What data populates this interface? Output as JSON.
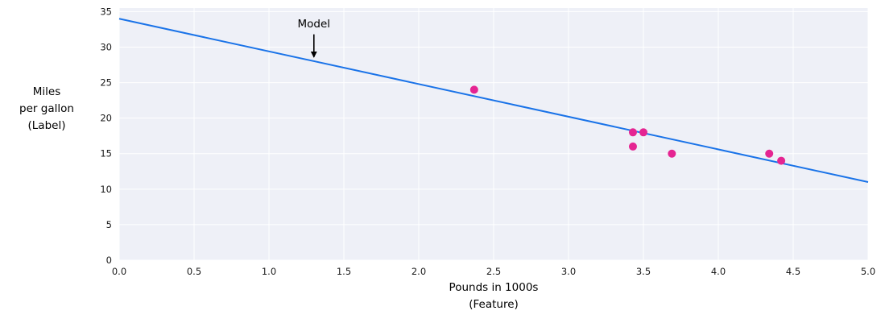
{
  "chart_data": {
    "type": "scatter",
    "title": "",
    "xlabel_lines": [
      "Pounds in 1000s",
      "(Feature)"
    ],
    "ylabel_lines": [
      "Miles",
      "per gallon",
      "(Label)"
    ],
    "xlim": [
      0,
      5
    ],
    "ylim": [
      0,
      35.5
    ],
    "xticks": [
      0,
      0.5,
      1.0,
      1.5,
      2.0,
      2.5,
      3.0,
      3.5,
      4.0,
      4.5,
      5.0
    ],
    "xtick_labels": [
      "0.0",
      "0.5",
      "1.0",
      "1.5",
      "2.0",
      "2.5",
      "3.0",
      "3.5",
      "4.0",
      "4.5",
      "5.0"
    ],
    "yticks": [
      0,
      5,
      10,
      15,
      20,
      25,
      30,
      35
    ],
    "ytick_labels": [
      "0",
      "5",
      "10",
      "15",
      "20",
      "25",
      "30",
      "35"
    ],
    "grid": true,
    "points": [
      {
        "x": 2.37,
        "y": 24
      },
      {
        "x": 3.43,
        "y": 18
      },
      {
        "x": 3.5,
        "y": 18
      },
      {
        "x": 3.43,
        "y": 16
      },
      {
        "x": 3.69,
        "y": 15
      },
      {
        "x": 4.34,
        "y": 15
      },
      {
        "x": 4.42,
        "y": 14
      }
    ],
    "model_line": {
      "x": [
        0,
        5
      ],
      "y": [
        34,
        11
      ]
    },
    "annotation": {
      "label": "Model",
      "x": 1.3,
      "label_y": 32.8,
      "arrow_from_y": 31.8,
      "arrow_to_y": 28.6
    },
    "colors": {
      "line": "#1a73e8",
      "points": "#e52592",
      "plot_bg": "#eef0f7",
      "grid": "#ffffff",
      "text": "#1a1a1a"
    }
  }
}
